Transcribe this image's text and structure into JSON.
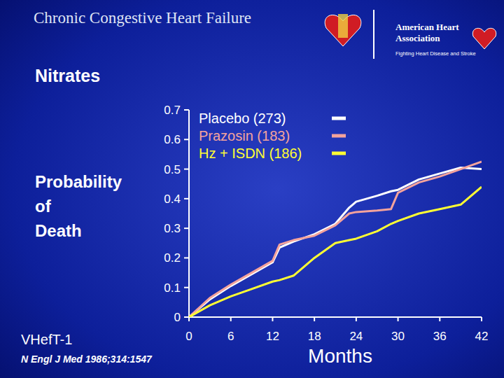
{
  "slide": {
    "header": "Chronic Congestive Heart Failure",
    "logo": [
      "American Heart",
      "Association",
      "Fighting Heart Disease and Stroke"
    ],
    "study": "VHefT-1",
    "citation": "N Engl J Med 1986;314:1547"
  },
  "chart_data": {
    "type": "line",
    "title": "Nitrates",
    "ylabel": "Probability of Death",
    "xlabel": "Months",
    "x": [
      0,
      3,
      6,
      9,
      12,
      13,
      15,
      18,
      21,
      23,
      24,
      27,
      29,
      30,
      33,
      36,
      39,
      42
    ],
    "series": [
      {
        "name": "Placebo (273)",
        "color": "#ffffff",
        "values": [
          0,
          0.06,
          0.105,
          0.145,
          0.185,
          0.235,
          0.255,
          0.28,
          0.315,
          0.37,
          0.39,
          0.41,
          0.425,
          0.43,
          0.465,
          0.485,
          0.505,
          0.5
        ]
      },
      {
        "name": "Prazosin (183)",
        "color": "#f4a39c",
        "values": [
          0,
          0.065,
          0.11,
          0.15,
          0.19,
          0.245,
          0.26,
          0.275,
          0.31,
          0.35,
          0.355,
          0.36,
          0.365,
          0.42,
          0.455,
          0.475,
          0.5,
          0.525
        ]
      },
      {
        "name": "Hz + ISDN (186)",
        "color": "#ffff33",
        "values": [
          0,
          0.04,
          0.07,
          0.095,
          0.12,
          0.125,
          0.14,
          0.2,
          0.25,
          0.26,
          0.265,
          0.29,
          0.315,
          0.325,
          0.35,
          0.365,
          0.38,
          0.44
        ]
      }
    ],
    "xlim": [
      0,
      42
    ],
    "xticks": [
      0,
      6,
      12,
      18,
      24,
      30,
      36,
      42
    ],
    "ylim": [
      0,
      0.7
    ],
    "yticks": [
      0,
      0.1,
      0.2,
      0.3,
      0.4,
      0.5,
      0.6,
      0.7
    ],
    "grid": false,
    "legend": "upper left"
  }
}
